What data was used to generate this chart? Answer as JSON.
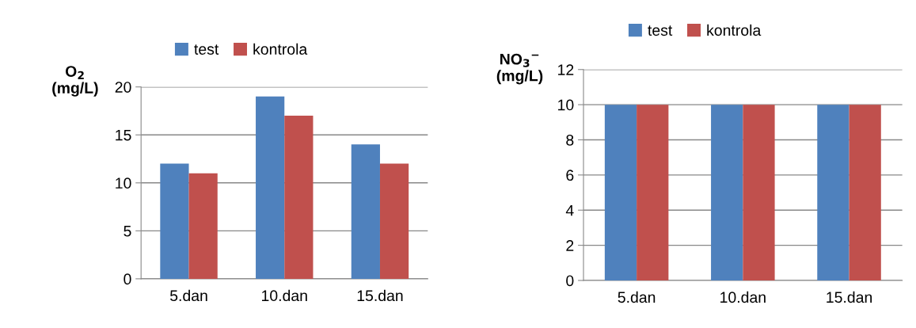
{
  "chart_data": [
    {
      "type": "bar",
      "ylabel": "O$_{2}$\n(mg/L)",
      "categories": [
        "5.dan",
        "10.dan",
        "15.dan"
      ],
      "series": [
        {
          "name": "test",
          "color": "#4f81bd",
          "values": [
            12,
            19,
            14
          ]
        },
        {
          "name": "kontrola",
          "color": "#c0504d",
          "values": [
            11,
            17,
            12
          ]
        }
      ],
      "ylim": [
        0,
        20
      ],
      "yticks": [
        0,
        5,
        10,
        15,
        20
      ],
      "grid": "y",
      "legend": "top"
    },
    {
      "type": "bar",
      "ylabel": "NO$_{3}$$^{−}$\n(mg/L)",
      "categories": [
        "5.dan",
        "10.dan",
        "15.dan"
      ],
      "series": [
        {
          "name": "test",
          "color": "#4f81bd",
          "values": [
            10,
            10,
            10
          ]
        },
        {
          "name": "kontrola",
          "color": "#c0504d",
          "values": [
            10,
            10,
            10
          ]
        }
      ],
      "ylim": [
        0,
        12
      ],
      "yticks": [
        0,
        2,
        4,
        6,
        8,
        10,
        12
      ],
      "grid": "y",
      "legend": "top"
    }
  ]
}
